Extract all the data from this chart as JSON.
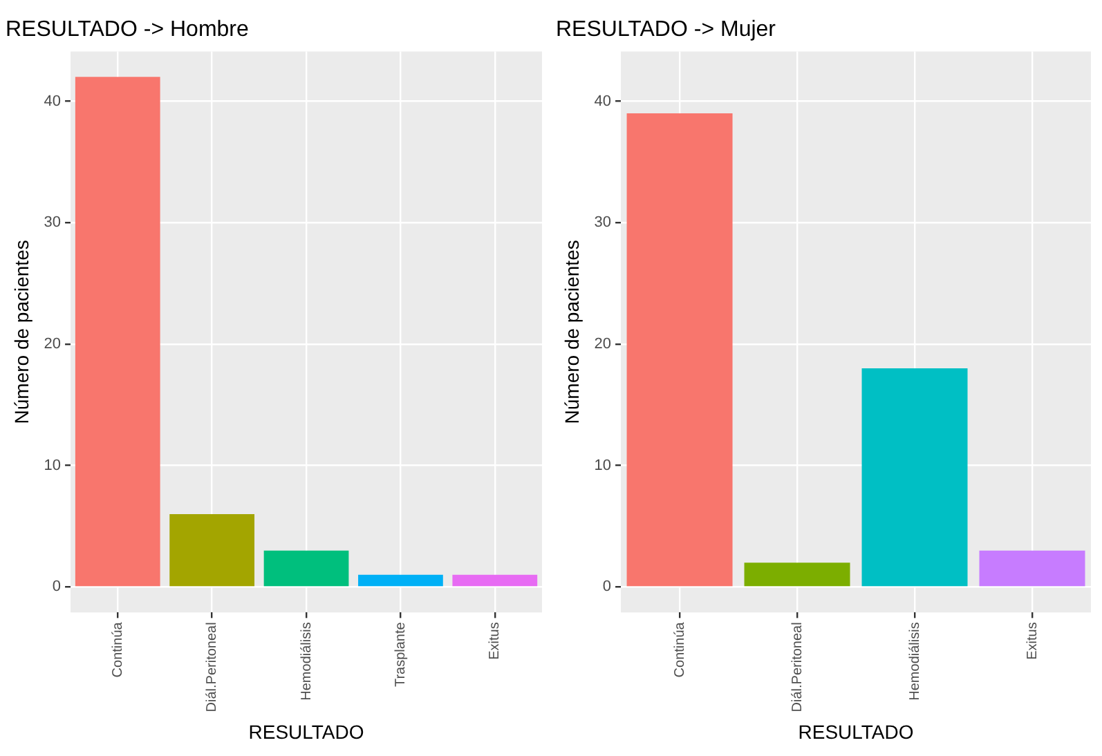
{
  "chart_data": [
    {
      "type": "bar",
      "title": "RESULTADO -> Hombre",
      "xlabel": "RESULTADO",
      "ylabel": "Número de pacientes",
      "categories": [
        "Continúa",
        "Diál.Peritoneal",
        "Hemodiálisis",
        "Trasplante",
        "Exitus"
      ],
      "values": [
        42,
        6,
        3,
        1,
        1
      ],
      "colors": [
        "#f8766d",
        "#a3a500",
        "#00bf7d",
        "#00b0f6",
        "#e76bf3"
      ],
      "ylim": [
        -2.1,
        44.1
      ],
      "yticks": [
        0,
        10,
        20,
        30,
        40
      ],
      "grid": true,
      "legend": false
    },
    {
      "type": "bar",
      "title": "RESULTADO -> Mujer",
      "xlabel": "RESULTADO",
      "ylabel": "Número de pacientes",
      "categories": [
        "Continúa",
        "Diál.Peritoneal",
        "Hemodiálisis",
        "Exitus"
      ],
      "values": [
        39,
        2,
        18,
        3
      ],
      "colors": [
        "#f8766d",
        "#7cae00",
        "#00bfc4",
        "#c77cff"
      ],
      "ylim": [
        -2.1,
        44.1
      ],
      "yticks": [
        0,
        10,
        20,
        30,
        40
      ],
      "grid": true,
      "legend": false
    }
  ]
}
